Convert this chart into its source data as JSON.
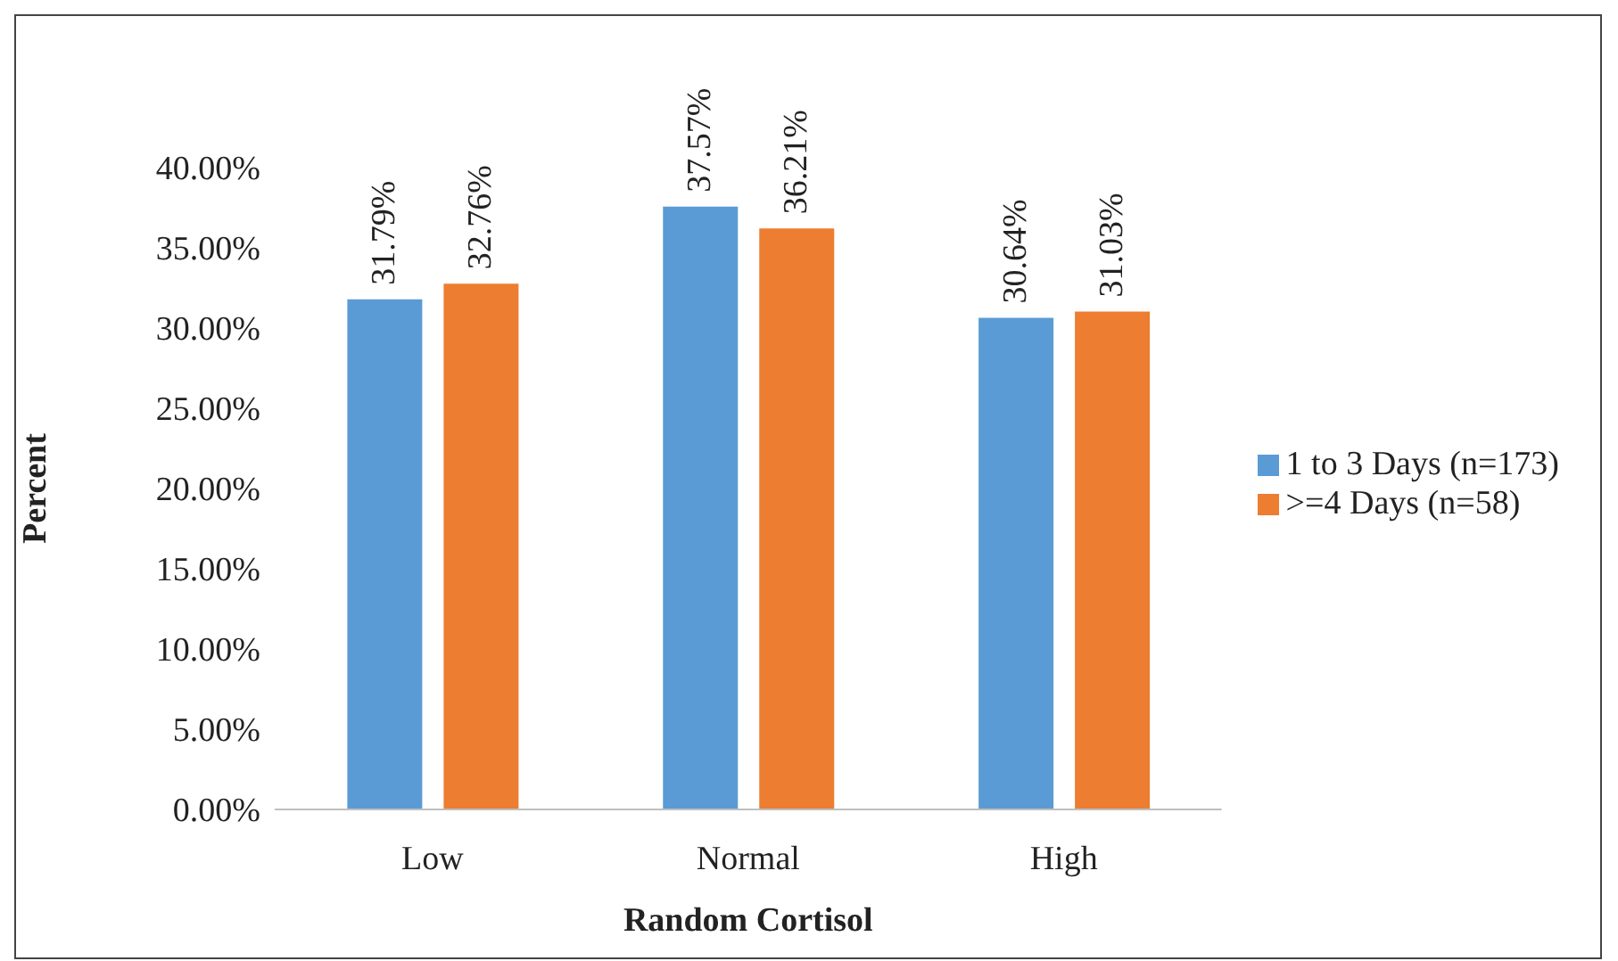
{
  "chart_data": {
    "type": "bar",
    "xlabel": "Random Cortisol",
    "ylabel": "Percent",
    "categories": [
      "Low",
      "Normal",
      "High"
    ],
    "series": [
      {
        "name": "1 to 3 Days (n=173)",
        "color": "#5b9bd5",
        "values": [
          31.79,
          37.57,
          30.64
        ],
        "value_labels": [
          "31.79%",
          "37.57%",
          "30.64%"
        ]
      },
      {
        "name": ">=4 Days (n=58)",
        "color": "#ed7d31",
        "values": [
          32.76,
          36.21,
          31.03
        ],
        "value_labels": [
          "32.76%",
          "36.21%",
          "31.03%"
        ]
      }
    ],
    "ylim": [
      0,
      40
    ],
    "yticks": [
      {
        "value": 0,
        "label": "0.00%"
      },
      {
        "value": 5,
        "label": "5.00%"
      },
      {
        "value": 10,
        "label": "10.00%"
      },
      {
        "value": 15,
        "label": "15.00%"
      },
      {
        "value": 20,
        "label": "20.00%"
      },
      {
        "value": 25,
        "label": "25.00%"
      },
      {
        "value": 30,
        "label": "30.00%"
      },
      {
        "value": 35,
        "label": "35.00%"
      },
      {
        "value": 40,
        "label": "40.00%"
      }
    ],
    "grid": false,
    "legend": "right"
  }
}
